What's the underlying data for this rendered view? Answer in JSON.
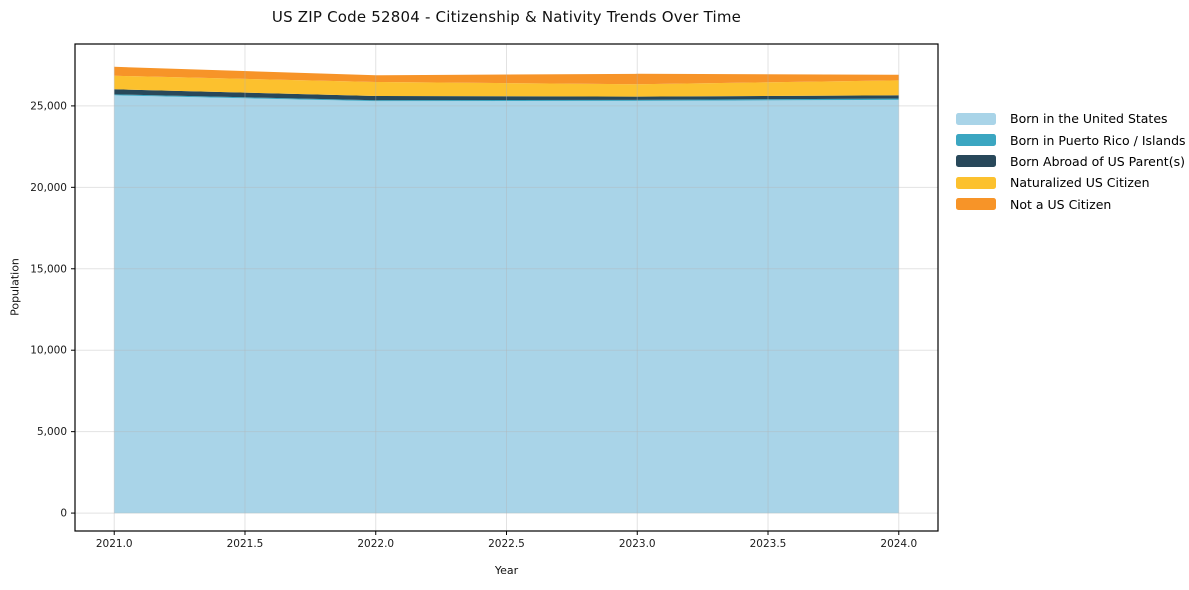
{
  "title": "US ZIP Code 52804 - Citizenship & Nativity Trends Over Time",
  "chart_data": {
    "type": "area",
    "stacked": true,
    "title": "US ZIP Code 52804 - Citizenship & Nativity Trends Over Time",
    "xlabel": "Year",
    "ylabel": "Population",
    "x": [
      2021,
      2022,
      2023,
      2024
    ],
    "series": [
      {
        "name": "Born in the United States",
        "color": "#a9d4e8",
        "values": [
          25650,
          25290,
          25310,
          25370
        ]
      },
      {
        "name": "Born in Puerto Rico / Islands",
        "color": "#3ba6c1",
        "values": [
          60,
          60,
          60,
          80
        ]
      },
      {
        "name": "Born Abroad of US Parent(s)",
        "color": "#28485a",
        "values": [
          310,
          260,
          200,
          200
        ]
      },
      {
        "name": "Naturalized US Citizen",
        "color": "#fcc12e",
        "values": [
          830,
          860,
          760,
          920
        ]
      },
      {
        "name": "Not a US Citizen",
        "color": "#f79428",
        "values": [
          550,
          410,
          640,
          340
        ]
      }
    ],
    "totals": [
      27400,
      26880,
      26970,
      26910
    ],
    "xlim": [
      2020.85,
      2024.15
    ],
    "ylim": [
      -1100,
      28800
    ],
    "xticks": [
      "2021.0",
      "2021.5",
      "2022.0",
      "2022.5",
      "2023.0",
      "2023.5",
      "2024.0"
    ],
    "xtick_values": [
      2021,
      2021.5,
      2022,
      2022.5,
      2023,
      2023.5,
      2024
    ],
    "yticks": [
      "0",
      "5,000",
      "10,000",
      "15,000",
      "20,000",
      "25,000"
    ],
    "ytick_values": [
      0,
      5000,
      10000,
      15000,
      20000,
      25000
    ],
    "grid": true,
    "legend_position": "right-outside",
    "colors": {
      "plot_background": "#ffffff",
      "axis_line": "#000000",
      "grid_line": "rgba(180,180,180,0.38)",
      "tick_text": "#1a1a1a"
    }
  }
}
